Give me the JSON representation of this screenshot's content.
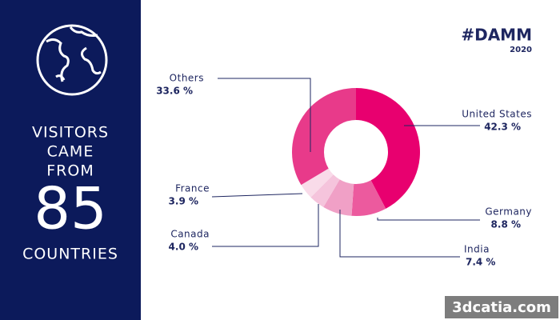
{
  "chart_data": {
    "type": "pie",
    "categories": [
      "United States",
      "Germany",
      "India",
      "Canada",
      "France",
      "Others"
    ],
    "values": [
      42.3,
      8.8,
      7.4,
      4.0,
      3.9,
      33.6
    ],
    "value_labels": [
      "42.3 %",
      "8.8 %",
      "7.4 %",
      "4.0 %",
      "3.9 %",
      "33.6 %"
    ],
    "colors": [
      "#e8006f",
      "#ec5a9e",
      "#f0a0c6",
      "#f5c4dc",
      "#f9dbe9",
      "#e83a8a"
    ],
    "donut": true
  },
  "panel": {
    "lines": [
      "VISITORS",
      "CAME",
      "FROM"
    ],
    "count": 85,
    "footer": "COUNTRIES"
  },
  "logo": {
    "name": "#DAMM",
    "year": "2020"
  },
  "watermark": "3dcatia.com"
}
